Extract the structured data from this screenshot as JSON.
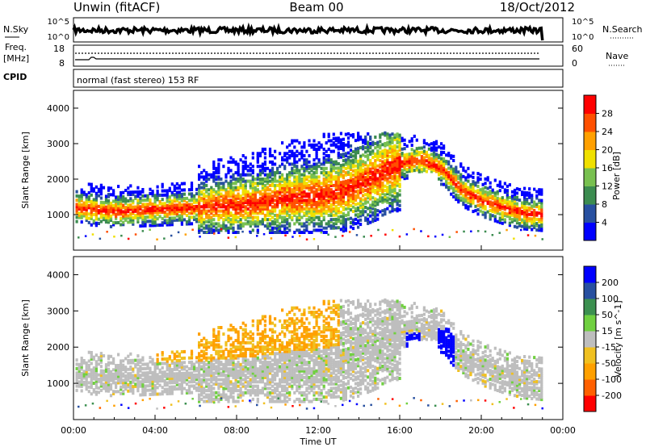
{
  "header": {
    "station": "Unwin (fitACF)",
    "beam": "Beam 00",
    "date": "18/Oct/2012"
  },
  "sky_panel": {
    "left_label": "N.Sky",
    "right_label": "N.Search",
    "left_ticks": [
      "10^5",
      "10^0"
    ],
    "right_ticks": [
      "10^5",
      "10^0"
    ]
  },
  "freq_panel": {
    "left_label_1": "Freq.",
    "left_label_2": "[MHz]",
    "right_label": "Nave",
    "left_ticks": [
      "18",
      "8"
    ],
    "right_ticks": [
      "60",
      "0"
    ]
  },
  "cpid_panel": {
    "label": "CPID",
    "text": "normal (fast stereo) 153 RF"
  },
  "chart_data": [
    {
      "type": "heatmap",
      "quantity": "Power",
      "unit": "dB",
      "ylabel": "Slant Range [km]",
      "ylim": [
        0,
        4500
      ],
      "yticks": [
        1000,
        2000,
        3000,
        4000
      ],
      "colorbar_label": "Power [dB]",
      "colorbar_ticks": [
        "4",
        "8",
        "12",
        "16",
        "20",
        "24",
        "28"
      ],
      "colorbar_range": [
        0,
        32
      ],
      "colors": [
        "#0000ff",
        "#2850a0",
        "#3c8c50",
        "#78c050",
        "#f0e000",
        "#ffa000",
        "#ff5000",
        "#ff0000"
      ],
      "echo_band_center_km": [
        [
          0,
          1200
        ],
        [
          2,
          1100
        ],
        [
          4,
          1150
        ],
        [
          6,
          1200
        ],
        [
          8,
          1300
        ],
        [
          9,
          1350
        ],
        [
          10,
          1450
        ],
        [
          11,
          1500
        ],
        [
          12,
          1550
        ],
        [
          13,
          1650
        ],
        [
          14,
          1850
        ],
        [
          15,
          2150
        ],
        [
          16,
          2450
        ],
        [
          17,
          2550
        ],
        [
          18,
          2300
        ],
        [
          19,
          1700
        ],
        [
          20,
          1400
        ],
        [
          21,
          1200
        ],
        [
          22,
          1050
        ],
        [
          23,
          1000
        ]
      ]
    },
    {
      "type": "heatmap",
      "quantity": "Velocity",
      "unit": "m s-1",
      "ylabel": "Slant Range [km]",
      "xlabel": "Time UT",
      "ylim": [
        0,
        4500
      ],
      "yticks": [
        1000,
        2000,
        3000,
        4000
      ],
      "xticks": [
        "00:00",
        "04:00",
        "08:00",
        "12:00",
        "16:00",
        "20:00",
        "00:00"
      ],
      "colorbar_label": "Velocity [m s^-1]",
      "colorbar_ticks": [
        "-200",
        "-100",
        "-50",
        "-15",
        "15",
        "50",
        "100",
        "200"
      ],
      "colors": [
        "#ff0000",
        "#ff6000",
        "#ffa000",
        "#f0c020",
        "#bebebe",
        "#70d040",
        "#3c9050",
        "#2850a0",
        "#0000ff"
      ]
    }
  ]
}
